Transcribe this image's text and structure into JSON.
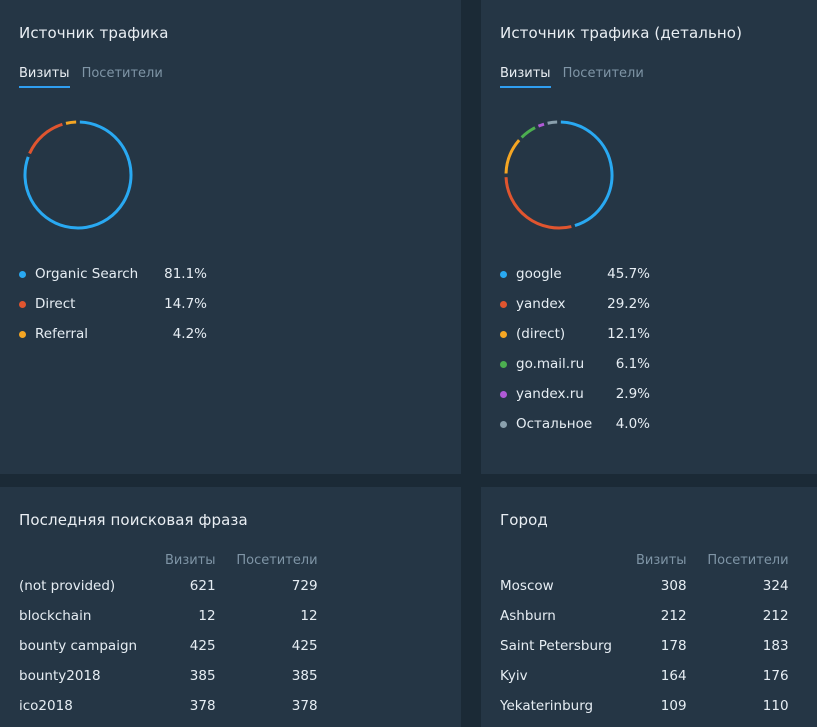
{
  "traffic_source": {
    "title": "Источник трафика",
    "tabs": [
      "Визиты",
      "Посетители"
    ],
    "colors": [
      "#29a9f2",
      "#e0552f",
      "#f5a623"
    ],
    "items": [
      {
        "label": "Organic Search",
        "value": "81.1%",
        "pct": 81.1
      },
      {
        "label": "Direct",
        "value": "14.7%",
        "pct": 14.7
      },
      {
        "label": "Referral",
        "value": "4.2%",
        "pct": 4.2
      }
    ]
  },
  "traffic_detail": {
    "title": "Источник трафика (детально)",
    "tabs": [
      "Визиты",
      "Посетители"
    ],
    "colors": [
      "#29a9f2",
      "#e0552f",
      "#f5a623",
      "#4caf50",
      "#b05ad6",
      "#8aa0ad"
    ],
    "items": [
      {
        "label": "google",
        "value": "45.7%",
        "pct": 45.7
      },
      {
        "label": "yandex",
        "value": "29.2%",
        "pct": 29.2
      },
      {
        "label": "(direct)",
        "value": "12.1%",
        "pct": 12.1
      },
      {
        "label": "go.mail.ru",
        "value": "6.1%",
        "pct": 6.1
      },
      {
        "label": "yandex.ru",
        "value": "2.9%",
        "pct": 2.9
      },
      {
        "label": "Остальное",
        "value": "4.0%",
        "pct": 4.0
      }
    ]
  },
  "search_phrase": {
    "title": "Последняя поисковая фраза",
    "columns": [
      "Визиты",
      "Посетители"
    ],
    "rows": [
      {
        "label": "(not provided)",
        "visits": "621",
        "visitors": "729"
      },
      {
        "label": "blockchain",
        "visits": "12",
        "visitors": "12"
      },
      {
        "label": "bounty campaign",
        "visits": "425",
        "visitors": "425"
      },
      {
        "label": "bounty2018",
        "visits": "385",
        "visitors": "385"
      },
      {
        "label": "ico2018",
        "visits": "378",
        "visitors": "378"
      }
    ]
  },
  "city": {
    "title": "Город",
    "columns": [
      "Визиты",
      "Посетители"
    ],
    "rows": [
      {
        "label": "Moscow",
        "visits": "308",
        "visitors": "324"
      },
      {
        "label": "Ashburn",
        "visits": "212",
        "visitors": "212"
      },
      {
        "label": "Saint Petersburg",
        "visits": "178",
        "visitors": "183"
      },
      {
        "label": "Kyiv",
        "visits": "164",
        "visitors": "176"
      },
      {
        "label": "Yekaterinburg",
        "visits": "109",
        "visitors": "110"
      }
    ]
  }
}
